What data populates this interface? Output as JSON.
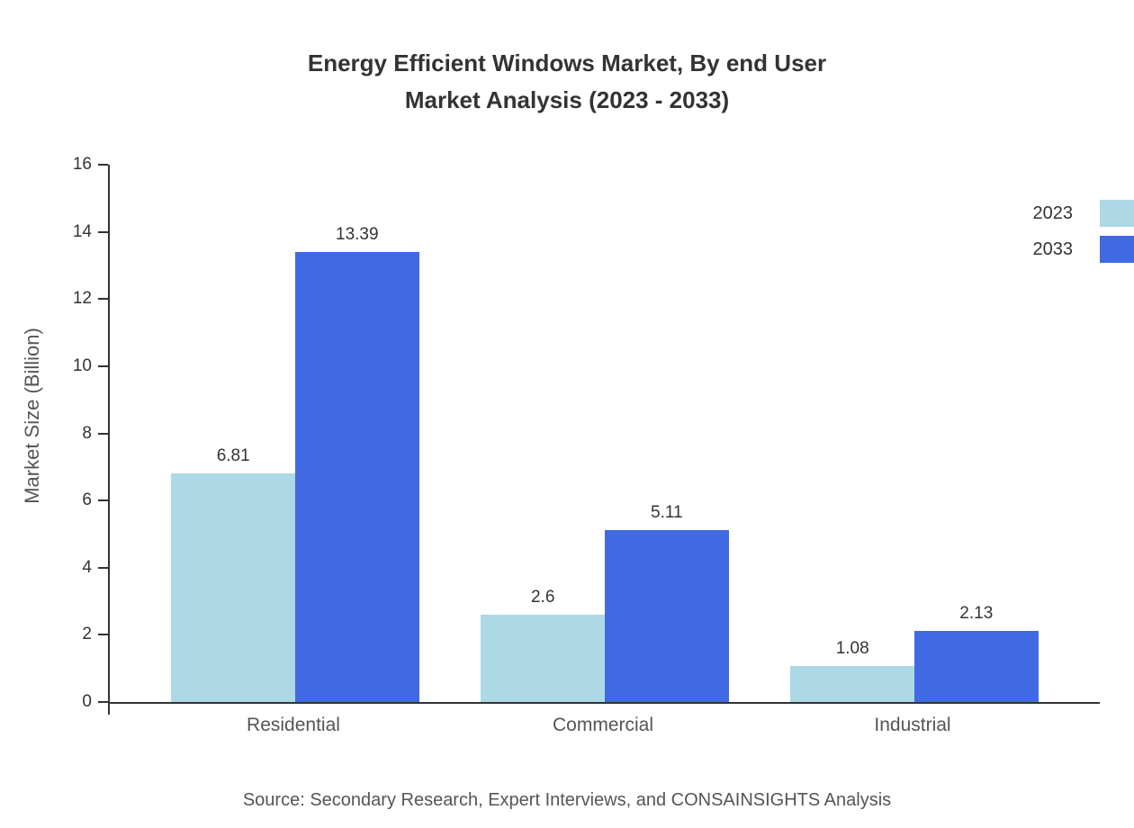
{
  "title_line1": "Energy Efficient Windows Market, By end User",
  "title_line2": "Market Analysis (2023 - 2033)",
  "source": "Source: Secondary Research, Expert Interviews, and CONSAINSIGHTS Analysis",
  "chart_data": {
    "type": "bar",
    "title": "Energy Efficient Windows Market, By end User Market Analysis (2023 - 2033)",
    "categories": [
      "Residential",
      "Commercial",
      "Industrial"
    ],
    "series": [
      {
        "name": "2023",
        "color": "#ADD8E6",
        "values": [
          6.81,
          2.6,
          1.08
        ]
      },
      {
        "name": "2033",
        "color": "#4169E1",
        "values": [
          13.39,
          5.11,
          2.13
        ]
      }
    ],
    "xlabel": "",
    "ylabel": "Market Size (Billion)",
    "ylim": [
      0,
      16
    ],
    "yticks": [
      0,
      2,
      4,
      6,
      8,
      10,
      12,
      14,
      16
    ],
    "grid": false,
    "legend_position": "top-right",
    "axis_color": "#333333",
    "label_color": "#555555"
  }
}
